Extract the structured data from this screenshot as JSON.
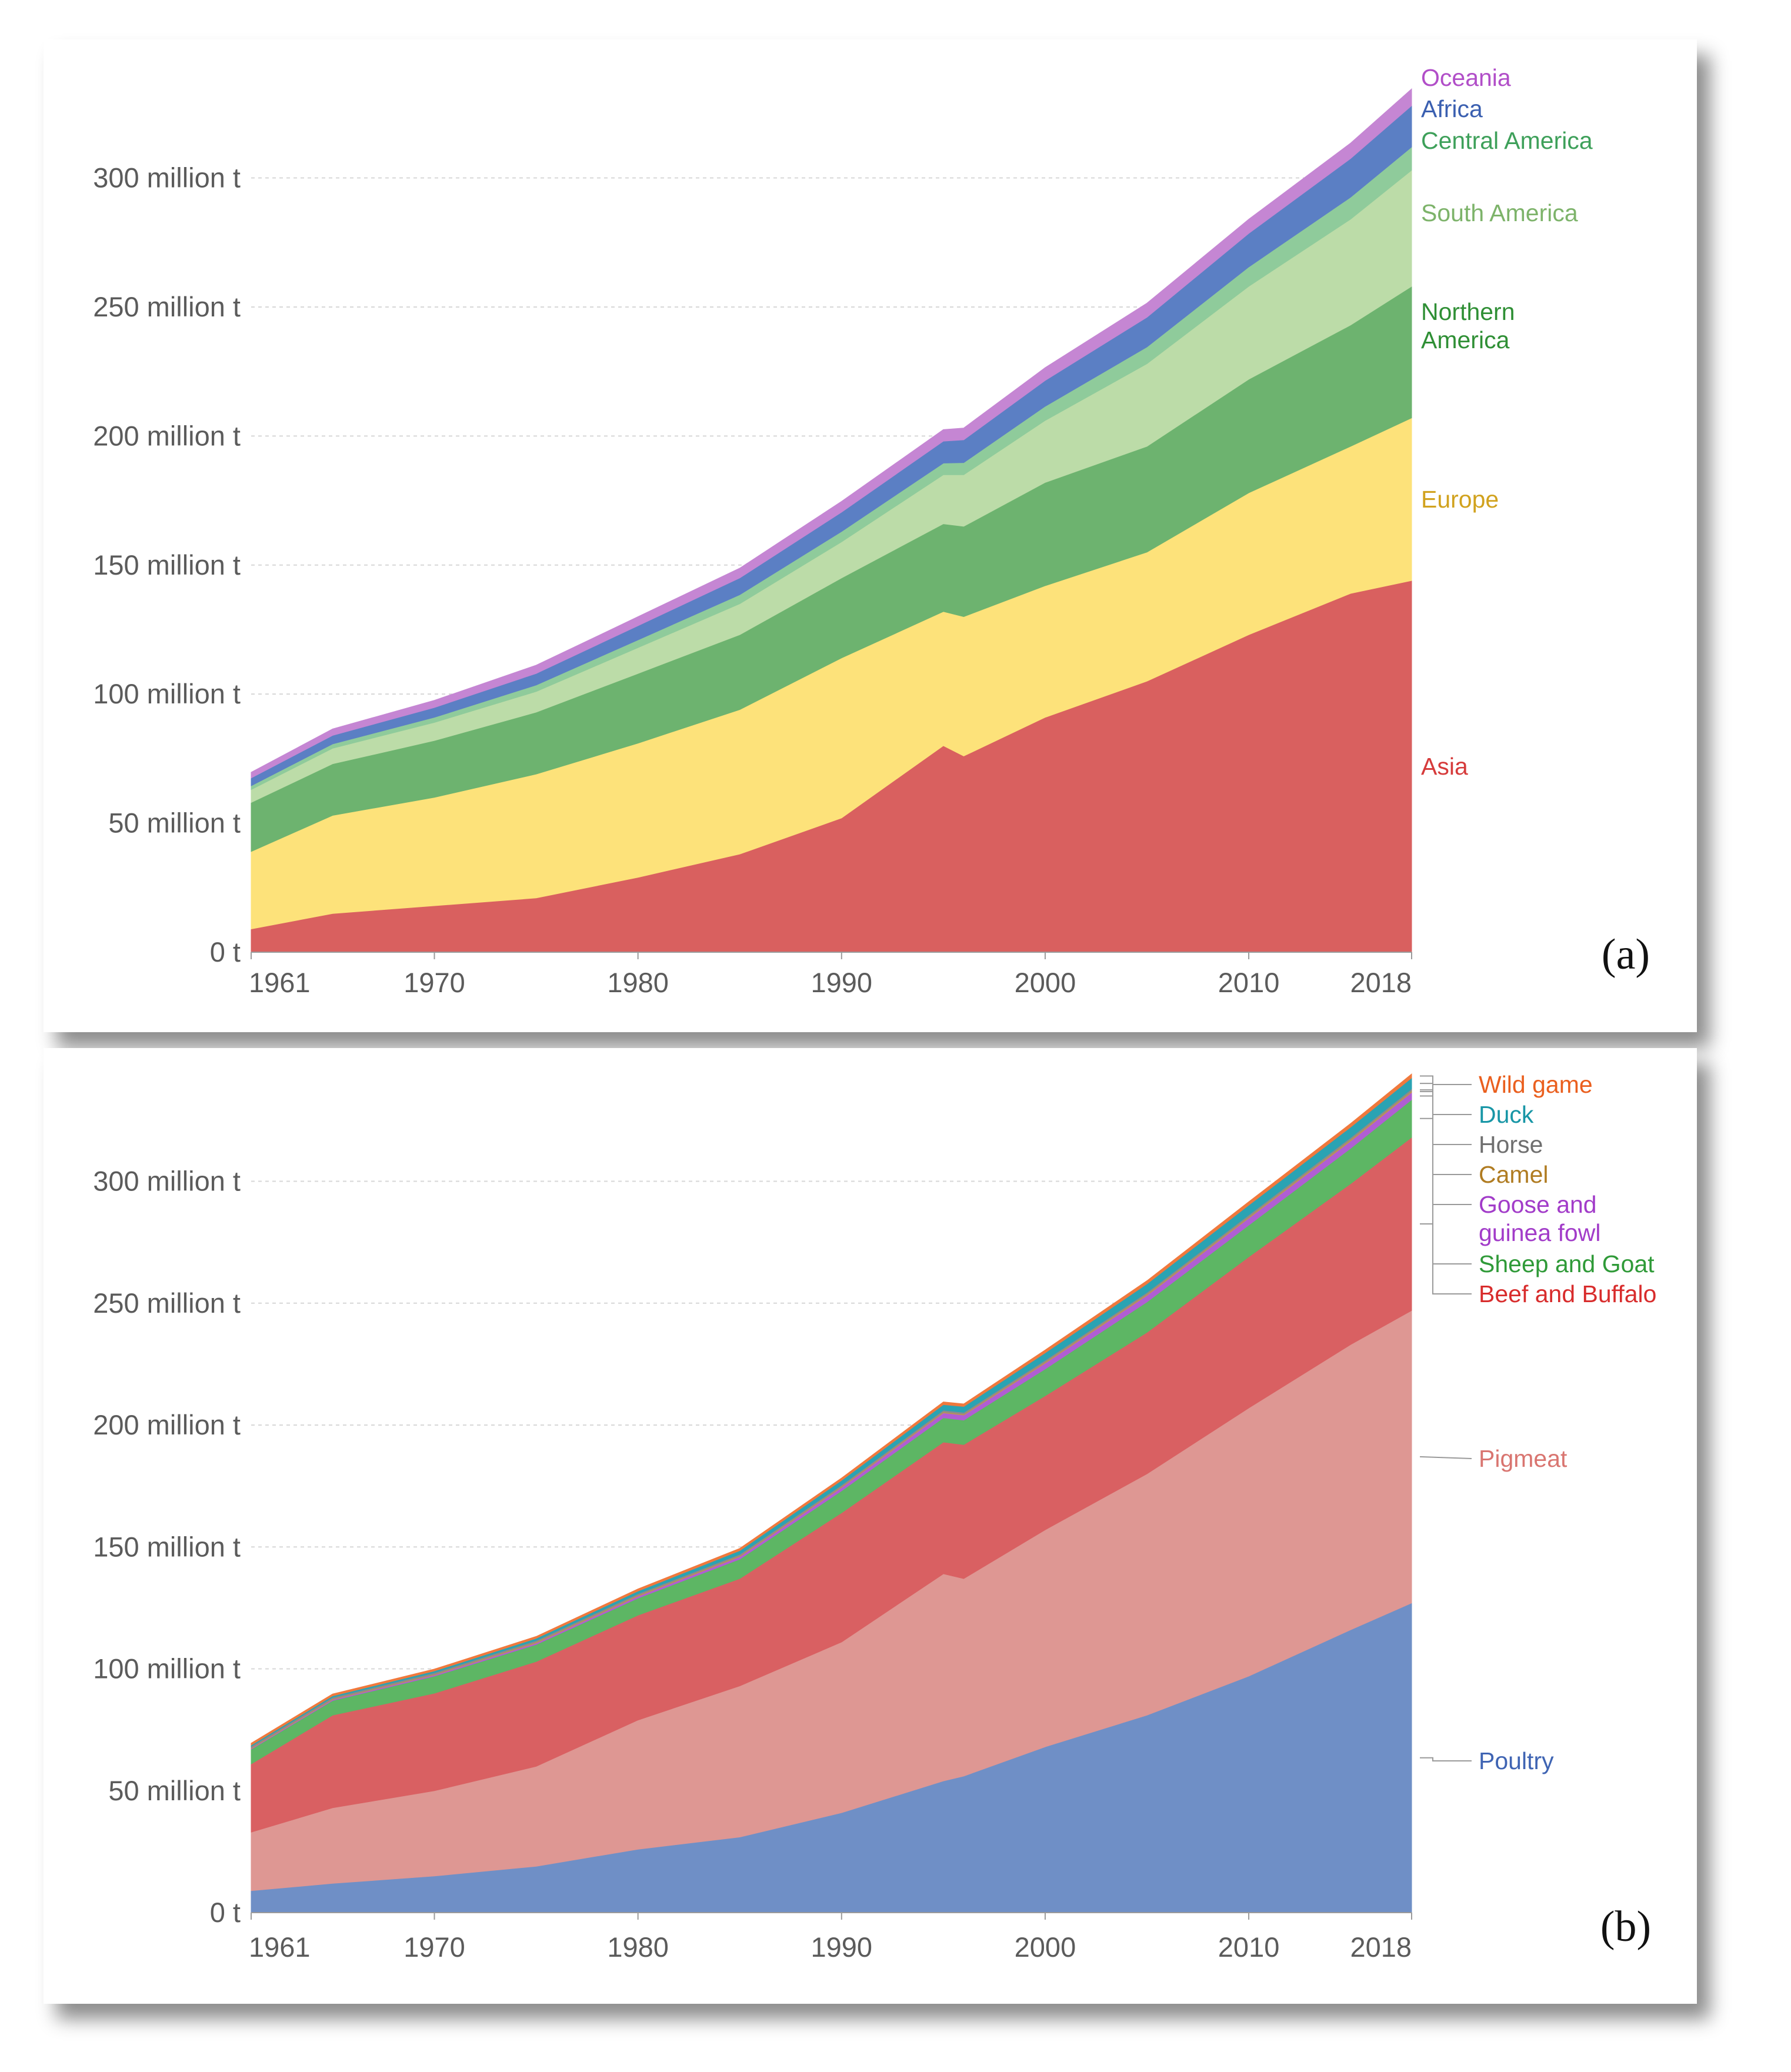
{
  "chart_data": [
    {
      "type": "area",
      "stacked": true,
      "panel_label": "(a)",
      "title": "",
      "xlabel": "",
      "ylabel": "",
      "x": [
        1961,
        1965,
        1970,
        1975,
        1980,
        1985,
        1990,
        1995,
        1996,
        2000,
        2005,
        2010,
        2015,
        2018
      ],
      "xticks": [
        "1961",
        "1970",
        "1980",
        "1990",
        "2000",
        "2010",
        "2018"
      ],
      "yticks": [
        "0 t",
        "50 million t",
        "100 million t",
        "150 million t",
        "200 million t",
        "250 million t",
        "300 million t"
      ],
      "ylim": [
        0,
        340
      ],
      "unit": "million t",
      "series": [
        {
          "name": "Asia",
          "color": "#d9605f",
          "values": [
            9,
            15,
            18,
            21,
            29,
            38,
            52,
            80,
            76,
            91,
            105,
            123,
            139,
            144
          ]
        },
        {
          "name": "Europe",
          "color": "#fde27a",
          "values": [
            30,
            38,
            42,
            48,
            52,
            56,
            62,
            52,
            54,
            51,
            50,
            55,
            57,
            63
          ]
        },
        {
          "name": "Northern America",
          "color": "#6db36f",
          "values": [
            19,
            20,
            22,
            24,
            27,
            29,
            31,
            34,
            35,
            40,
            41,
            44,
            47,
            51
          ]
        },
        {
          "name": "South America",
          "color": "#bcdca8",
          "values": [
            5,
            6,
            7,
            8,
            10,
            12,
            14,
            19,
            20,
            24,
            32,
            36,
            41,
            45
          ]
        },
        {
          "name": "Central America",
          "color": "#8fcb9b",
          "values": [
            1.5,
            1.7,
            2,
            2.5,
            3,
            3.5,
            4,
            4.5,
            4.7,
            5.5,
            6.5,
            7.5,
            8.5,
            9
          ]
        },
        {
          "name": "Africa",
          "color": "#5b7fc4",
          "values": [
            3,
            3.3,
            3.8,
            4.5,
            5.5,
            6.5,
            7.5,
            8.5,
            8.8,
            10,
            11.5,
            13,
            15,
            16
          ]
        },
        {
          "name": "Oceania",
          "color": "#c586d3",
          "values": [
            2.2,
            2.5,
            2.8,
            3.2,
            3.5,
            3.8,
            4.2,
            4.5,
            4.6,
            5,
            5.5,
            5.5,
            6,
            6.5
          ]
        }
      ]
    },
    {
      "type": "area",
      "stacked": true,
      "panel_label": "(b)",
      "title": "",
      "xlabel": "",
      "ylabel": "",
      "x": [
        1961,
        1965,
        1970,
        1975,
        1980,
        1985,
        1990,
        1995,
        1996,
        2000,
        2005,
        2010,
        2015,
        2018
      ],
      "xticks": [
        "1961",
        "1970",
        "1980",
        "1990",
        "2000",
        "2010",
        "2018"
      ],
      "yticks": [
        "0 t",
        "50 million t",
        "100 million t",
        "150 million t",
        "200 million t",
        "250 million t",
        "300 million t"
      ],
      "ylim": [
        0,
        345
      ],
      "unit": "million t",
      "series": [
        {
          "name": "Poultry",
          "color": "#6f8fc6",
          "values": [
            9,
            12,
            15,
            19,
            26,
            31,
            41,
            54,
            56,
            68,
            81,
            97,
            116,
            127
          ]
        },
        {
          "name": "Pigmeat",
          "color": "#de9793",
          "values": [
            24,
            31,
            35,
            41,
            53,
            62,
            70,
            85,
            81,
            89,
            99,
            110,
            117,
            120
          ]
        },
        {
          "name": "Beef and Buffalo",
          "color": "#d96062",
          "values": [
            28,
            38,
            40,
            43,
            43,
            44,
            53,
            54,
            55,
            55,
            58,
            62,
            66,
            71
          ]
        },
        {
          "name": "Sheep and Goat",
          "color": "#5db664",
          "values": [
            6,
            6,
            7,
            7,
            7,
            8,
            9,
            10,
            10,
            11,
            12.5,
            13,
            14.5,
            15.5
          ]
        },
        {
          "name": "Goose and guinea fowl",
          "color": "#b05ed3",
          "values": [
            0.3,
            0.4,
            0.5,
            0.6,
            0.8,
            1,
            1.4,
            2,
            2.1,
            2.4,
            2.7,
            2.9,
            3,
            3
          ]
        },
        {
          "name": "Camel",
          "color": "#c0974a",
          "values": [
            0.3,
            0.3,
            0.3,
            0.4,
            0.4,
            0.4,
            0.4,
            0.4,
            0.4,
            0.5,
            0.5,
            0.5,
            0.6,
            0.6
          ]
        },
        {
          "name": "Horse",
          "color": "#8b8b8b",
          "values": [
            0.6,
            0.6,
            0.6,
            0.6,
            0.6,
            0.6,
            0.6,
            0.7,
            0.7,
            0.7,
            0.7,
            0.8,
            0.8,
            0.8
          ]
        },
        {
          "name": "Duck",
          "color": "#2aa3b3",
          "values": [
            0.5,
            0.6,
            0.7,
            0.9,
            1.1,
            1.5,
            1.9,
            2.3,
            2.4,
            3,
            3.5,
            4,
            4.3,
            4.5
          ]
        },
        {
          "name": "Wild game",
          "color": "#f0793d",
          "values": [
            0.8,
            0.8,
            0.8,
            0.8,
            0.9,
            0.9,
            1,
            1.1,
            1.1,
            1.2,
            1.3,
            1.4,
            1.5,
            1.6
          ]
        }
      ]
    }
  ]
}
